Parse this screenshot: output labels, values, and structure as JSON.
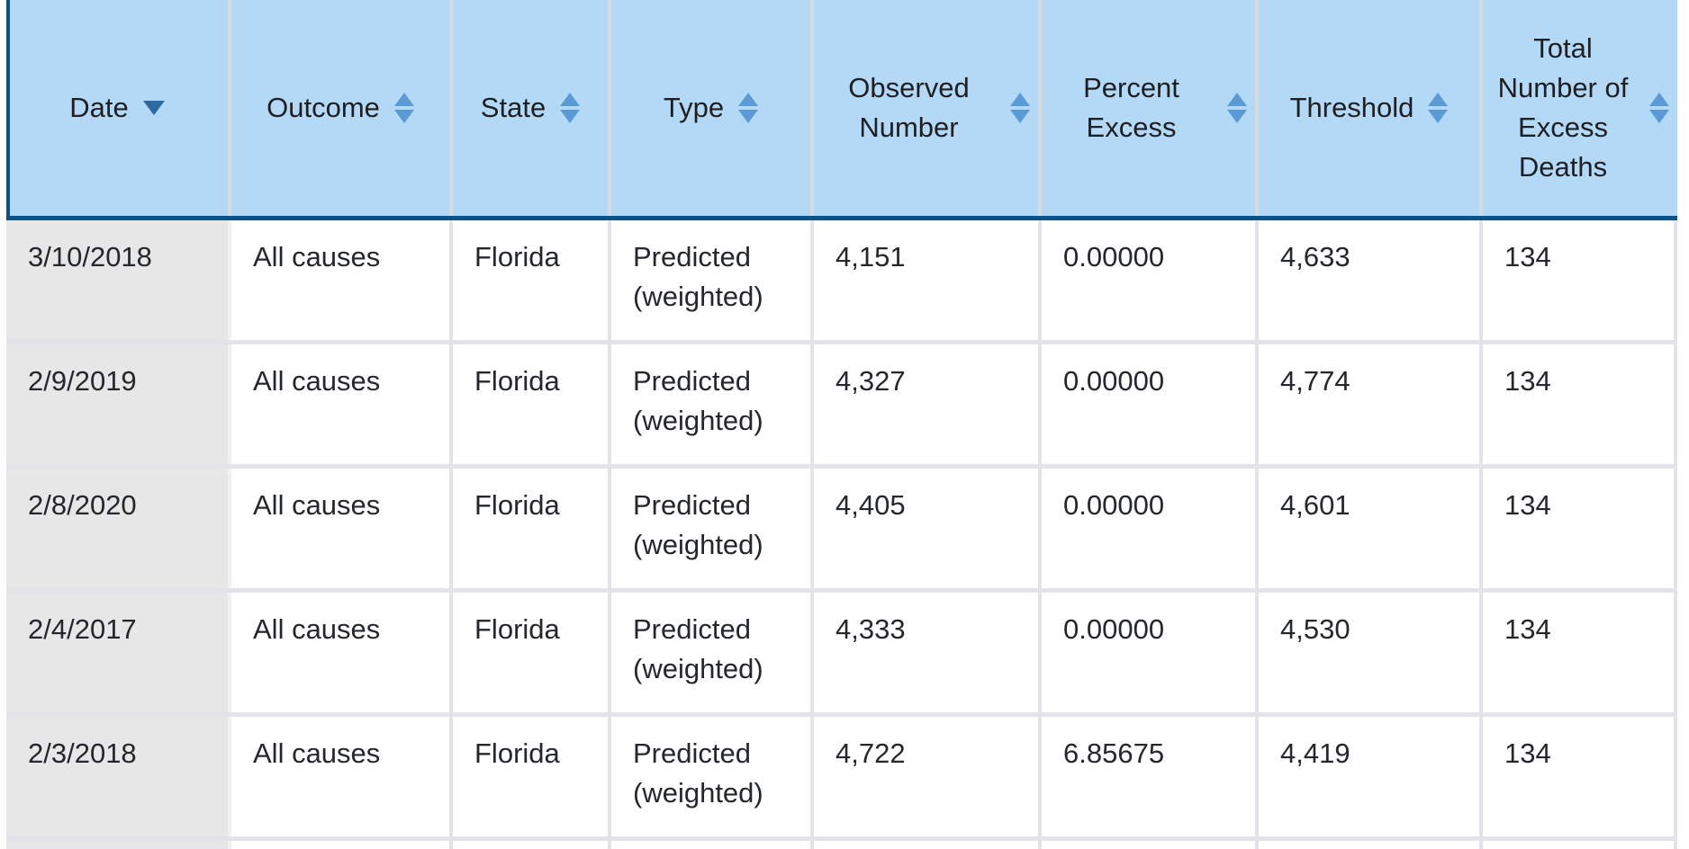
{
  "table": {
    "columns": [
      {
        "label": "Date",
        "sort": "desc"
      },
      {
        "label": "Outcome",
        "sort": "none"
      },
      {
        "label": "State",
        "sort": "none"
      },
      {
        "label": "Type",
        "sort": "none"
      },
      {
        "label": "Observed Number",
        "sort": "none"
      },
      {
        "label": "Percent Excess",
        "sort": "none"
      },
      {
        "label": "Threshold",
        "sort": "none"
      },
      {
        "label": "Total Number of Excess Deaths",
        "sort": "none"
      }
    ],
    "rows": [
      [
        "3/10/2018",
        "All causes",
        "Florida",
        "Predicted (weighted)",
        "4,151",
        "0.00000",
        "4,633",
        "134"
      ],
      [
        "2/9/2019",
        "All causes",
        "Florida",
        "Predicted (weighted)",
        "4,327",
        "0.00000",
        "4,774",
        "134"
      ],
      [
        "2/8/2020",
        "All causes",
        "Florida",
        "Predicted (weighted)",
        "4,405",
        "0.00000",
        "4,601",
        "134"
      ],
      [
        "2/4/2017",
        "All causes",
        "Florida",
        "Predicted (weighted)",
        "4,333",
        "0.00000",
        "4,530",
        "134"
      ],
      [
        "2/3/2018",
        "All causes",
        "Florida",
        "Predicted (weighted)",
        "4,722",
        "6.85675",
        "4,419",
        "134"
      ]
    ]
  },
  "colors": {
    "header_bg": "#b3d9f7",
    "header_divider": "#d8dadc",
    "header_border": "#0d5186",
    "date_col_bg": "#e7e7e7",
    "grid": "#e2e4e9",
    "text": "#24272c",
    "sort_active": "#2c699f",
    "sort_inactive": "#5b9bd5"
  }
}
